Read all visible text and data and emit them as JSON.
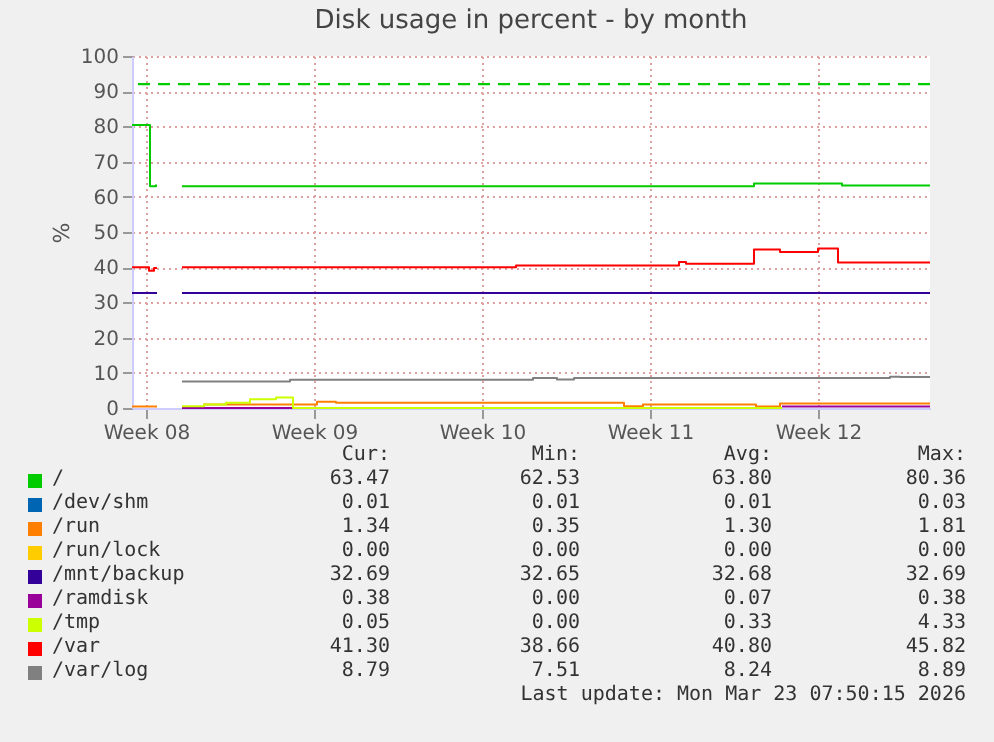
{
  "chart_data": {
    "type": "step",
    "title": "Disk usage in percent - by month",
    "ylabel": "%",
    "xlim": [
      "2026-02-18T22:00",
      "2026-03-24T04:00"
    ],
    "xticks": [
      {
        "value": "2026-02-19T12:00",
        "label": "Week 08"
      },
      {
        "value": "2026-02-26T12:00",
        "label": "Week 09"
      },
      {
        "value": "2026-03-05T12:00",
        "label": "Week 10"
      },
      {
        "value": "2026-03-12T12:00",
        "label": "Week 11"
      },
      {
        "value": "2026-03-19T12:00",
        "label": "Week 12"
      }
    ],
    "ylim": [
      0,
      100
    ],
    "yticks": [
      0,
      10,
      20,
      30,
      40,
      50,
      60,
      70,
      80,
      90,
      100
    ],
    "grid": true,
    "legend": "bottom",
    "series": [
      {
        "name": "/",
        "color": "#00cc00",
        "x": [
          "2026-02-18T22:00",
          "2026-02-19T12:00",
          "2026-02-19T16:00",
          "2026-02-19T22:00",
          "2026-02-20T00:00",
          "2026-02-21T00:00",
          "2026-03-16T20:00",
          "2026-03-20T12:00",
          "2026-03-24T04:00"
        ],
        "values": [
          80.4,
          80.4,
          63,
          63.5,
          null,
          63,
          63.8,
          63.2,
          63.2
        ]
      },
      {
        "name": "/dev/shm",
        "color": "#0066b3"
      },
      {
        "name": "/run",
        "color": "#ff8000",
        "x": [
          "2026-02-18T22:00",
          "2026-02-19T23:00",
          "2026-02-20T00:00",
          "2026-02-21T00:00",
          "2026-02-21T22:00",
          "2026-02-26T15:00",
          "2026-02-27T10:00",
          "2026-03-11T10:00",
          "2026-03-12T05:00",
          "2026-03-16T22:00",
          "2026-03-17T22:00",
          "2026-03-24T04:00"
        ],
        "values": [
          0.4,
          0.4,
          null,
          0.3,
          1.0,
          1.8,
          1.5,
          0.5,
          1.0,
          0.4,
          1.3,
          1.3
        ]
      },
      {
        "name": "/run/lock",
        "color": "#ffcc00"
      },
      {
        "name": "/mnt/backup",
        "color": "#330099",
        "x": [
          "2026-02-18T22:00",
          "2026-02-19T23:00",
          "2026-02-20T00:00",
          "2026-02-21T00:00",
          "2026-03-24T04:00"
        ],
        "values": [
          32.7,
          32.7,
          null,
          32.7,
          32.7
        ]
      },
      {
        "name": "/ramdisk",
        "color": "#990099",
        "x": [
          "2026-02-21T00:00",
          "2026-02-25T15:00",
          "2026-02-25T16:00",
          "2026-03-18T00:00",
          "2026-03-24T04:00"
        ],
        "values": [
          0,
          0,
          null,
          0.4,
          0.4
        ]
      },
      {
        "name": "/tmp",
        "color": "#ccff00",
        "x": [
          "2026-02-21T00:00",
          "2026-02-21T22:00",
          "2026-02-22T20:00",
          "2026-02-23T20:00",
          "2026-02-24T22:00",
          "2026-02-25T15:00",
          "2026-03-18T00:00"
        ],
        "values": [
          0.5,
          1.0,
          1.5,
          2.5,
          3.0,
          0,
          0
        ]
      },
      {
        "name": "/var",
        "color": "#ff0000",
        "x": [
          "2026-02-18T22:00",
          "2026-02-19T15:00",
          "2026-02-19T20:00",
          "2026-02-19T23:00",
          "2026-02-20T00:00",
          "2026-02-21T00:00",
          "2026-03-06T22:00",
          "2026-03-13T17:00",
          "2026-03-14T00:00",
          "2026-03-16T20:00",
          "2026-03-17T22:00",
          "2026-03-19T12:00",
          "2026-03-20T08:00",
          "2026-03-24T04:00"
        ],
        "values": [
          40,
          39,
          39.8,
          39.8,
          null,
          40,
          40.5,
          41.5,
          41,
          45,
          44.3,
          45.3,
          41.3,
          41.3
        ]
      },
      {
        "name": "/var/log",
        "color": "#808080",
        "x": [
          "2026-02-21T00:00",
          "2026-02-25T12:00",
          "2026-03-07T15:00",
          "2026-03-08T15:00",
          "2026-03-09T08:00",
          "2026-03-22T12:00",
          "2026-03-22T22:00",
          "2026-03-24T04:00"
        ],
        "values": [
          7.5,
          8,
          8.5,
          8.1,
          8.5,
          8.9,
          8.8,
          8.8
        ]
      }
    ],
    "ref_lines": [
      {
        "axis": "y",
        "value": 92,
        "color": "#00cc00",
        "line_style": "dashed"
      }
    ],
    "annotations": [
      "Cur:",
      "Min:",
      "Avg:",
      "Max:",
      "63.47",
      "62.53",
      "63.80",
      "80.36",
      "0.01",
      "0.01",
      "0.01",
      "0.03",
      "1.34",
      "0.35",
      "1.30",
      "1.81",
      "0.00",
      "0.00",
      "0.00",
      "0.00",
      "32.69",
      "32.65",
      "32.68",
      "32.69",
      "0.38",
      "0.00",
      "0.07",
      "0.38",
      "0.05",
      "0.00",
      "0.33",
      "4.33",
      "41.30",
      "38.66",
      "40.80",
      "45.82",
      "8.79",
      "7.51",
      "8.24",
      "8.89",
      "Last update: Mon Mar 23 07:50:15 2026"
    ]
  }
}
